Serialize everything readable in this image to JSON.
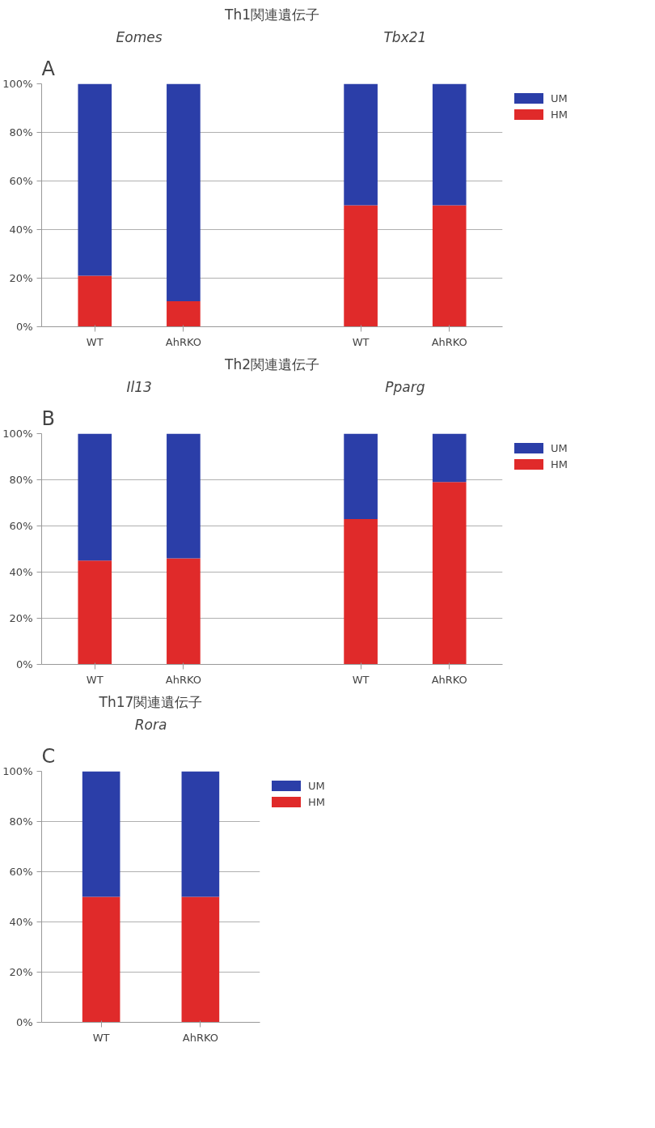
{
  "chart_data": [
    {
      "type": "bar",
      "stacked": true,
      "title": "Th1関連遺伝子",
      "annotations": [
        "A",
        "Eomes",
        "Tbx21"
      ],
      "categories": [
        "WT",
        "AhRKO",
        null,
        "WT",
        "AhRKO"
      ],
      "series": [
        {
          "name": "HM",
          "color": "#e02a2a",
          "values": [
            21,
            10.5,
            null,
            50,
            50
          ]
        },
        {
          "name": "UM",
          "color": "#2b3ea8",
          "values": [
            79,
            89.5,
            null,
            50,
            50
          ]
        }
      ],
      "ylim": [
        0,
        100
      ],
      "yticks": [
        {
          "value": 0,
          "label": "0%"
        },
        {
          "value": 20,
          "label": "20%"
        },
        {
          "value": 40,
          "label": "40%"
        },
        {
          "value": 60,
          "label": "60%"
        },
        {
          "value": 80,
          "label": "80%"
        },
        {
          "value": 100,
          "label": "100%"
        }
      ],
      "grid": "y",
      "legend": "top right"
    },
    {
      "type": "bar",
      "stacked": true,
      "title": "Th2関連遺伝子",
      "annotations": [
        "B",
        "Il13",
        "Pparg"
      ],
      "categories": [
        "WT",
        "AhRKO",
        null,
        "WT",
        "AhRKO"
      ],
      "series": [
        {
          "name": "HM",
          "color": "#e02a2a",
          "values": [
            45,
            46,
            null,
            63,
            79
          ]
        },
        {
          "name": "UM",
          "color": "#2b3ea8",
          "values": [
            55,
            54,
            null,
            37,
            21
          ]
        }
      ],
      "ylim": [
        0,
        100
      ],
      "yticks": [
        {
          "value": 0,
          "label": "0%"
        },
        {
          "value": 20,
          "label": "20%"
        },
        {
          "value": 40,
          "label": "40%"
        },
        {
          "value": 60,
          "label": "60%"
        },
        {
          "value": 80,
          "label": "80%"
        },
        {
          "value": 100,
          "label": "100%"
        }
      ],
      "grid": "y",
      "legend": "top right"
    },
    {
      "type": "bar",
      "stacked": true,
      "title": "Th17関連遺伝子",
      "annotations": [
        "C",
        "Rora"
      ],
      "categories": [
        "WT",
        "AhRKO"
      ],
      "series": [
        {
          "name": "HM",
          "color": "#e02a2a",
          "values": [
            50,
            50
          ]
        },
        {
          "name": "UM",
          "color": "#2b3ea8",
          "values": [
            50,
            50
          ]
        }
      ],
      "ylim": [
        0,
        100
      ],
      "yticks": [
        {
          "value": 0,
          "label": "0%"
        },
        {
          "value": 20,
          "label": "20%"
        },
        {
          "value": 40,
          "label": "40%"
        },
        {
          "value": 60,
          "label": "60%"
        },
        {
          "value": 80,
          "label": "80%"
        },
        {
          "value": 100,
          "label": "100%"
        }
      ],
      "grid": "y",
      "legend": "top right"
    }
  ]
}
